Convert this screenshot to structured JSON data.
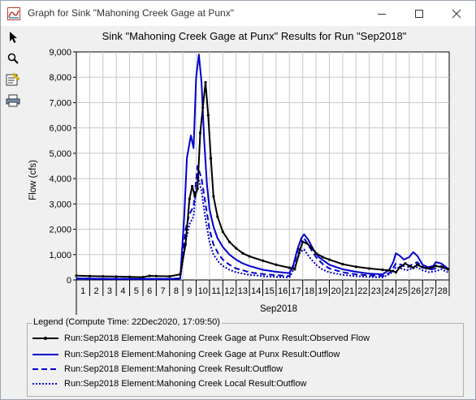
{
  "window": {
    "title": "Graph for Sink \"Mahoning Creek Gage at Punx\""
  },
  "colors": {
    "observed": "#000000",
    "outflow": "#0000cc",
    "accent_blue": "#1a1ae6"
  },
  "toolbar": {
    "items": [
      "pointer-icon",
      "zoom-icon",
      "properties-icon",
      "print-icon"
    ]
  },
  "chart_data": {
    "type": "line",
    "title": "Sink \"Mahoning Creek Gage at Punx\" Results for Run \"Sep2018\"",
    "ylabel": "Flow (cfs)",
    "xlabel": "Sep2018",
    "ylim": [
      0,
      9000
    ],
    "yticks": [
      "0",
      "1,000",
      "2,000",
      "3,000",
      "4,000",
      "5,000",
      "6,000",
      "7,000",
      "8,000",
      "9,000"
    ],
    "xlim": [
      1,
      29
    ],
    "xtick_labels": [
      "1",
      "2",
      "3",
      "4",
      "5",
      "6",
      "7",
      "8",
      "9",
      "10",
      "11",
      "12",
      "13",
      "14",
      "15",
      "16",
      "17",
      "18",
      "19",
      "20",
      "21",
      "22",
      "23",
      "24",
      "25",
      "26",
      "27",
      "28"
    ],
    "grid": true,
    "series": [
      {
        "name": "Run:Sep2018 Element:Mahoning Creek Gage at Punx Result:Observed Flow",
        "style": "solid-marker",
        "x": [
          1,
          2,
          3,
          4,
          5,
          6,
          6.5,
          7,
          8,
          8.8,
          9.2,
          9.5,
          9.7,
          9.9,
          10.1,
          10.3,
          10.5,
          10.7,
          10.9,
          11.1,
          11.3,
          11.6,
          12,
          12.5,
          13,
          13.5,
          14,
          15,
          16,
          17,
          17.4,
          17.8,
          18,
          18.3,
          18.7,
          19,
          19.5,
          20,
          21,
          22,
          23,
          24,
          24.5,
          25,
          25.3,
          25.7,
          26,
          26.3,
          26.6,
          27,
          27.5,
          28,
          28.5,
          28.9
        ],
        "y": [
          170,
          150,
          140,
          130,
          120,
          110,
          160,
          150,
          140,
          220,
          1400,
          3200,
          3700,
          3300,
          3600,
          5800,
          6800,
          7800,
          6500,
          4800,
          3300,
          2500,
          1900,
          1500,
          1250,
          1050,
          930,
          760,
          600,
          480,
          420,
          1200,
          1500,
          1450,
          1250,
          1050,
          900,
          800,
          620,
          520,
          450,
          400,
          380,
          300,
          500,
          650,
          550,
          480,
          600,
          500,
          450,
          550,
          500,
          420
        ]
      },
      {
        "name": "Run:Sep2018 Element:Mahoning Creek Gage at Punx Result:Outflow",
        "style": "solid",
        "x": [
          1,
          2,
          3,
          4,
          5,
          6,
          7,
          8,
          8.8,
          9.1,
          9.3,
          9.6,
          9.8,
          10,
          10.2,
          10.4,
          10.6,
          10.8,
          11,
          11.3,
          11.6,
          12,
          12.5,
          13,
          13.5,
          14,
          15,
          16,
          17,
          17.3,
          17.6,
          17.9,
          18.1,
          18.4,
          18.8,
          19.2,
          20,
          21,
          22,
          23,
          24,
          24.5,
          24.8,
          25,
          25.3,
          25.6,
          26,
          26.3,
          26.6,
          27,
          27.4,
          27.8,
          28,
          28.4,
          28.9
        ],
        "y": [
          60,
          50,
          45,
          40,
          40,
          40,
          40,
          40,
          60,
          2500,
          4800,
          5700,
          5200,
          8000,
          8900,
          7800,
          5500,
          3800,
          2800,
          2100,
          1650,
          1300,
          1000,
          800,
          650,
          550,
          400,
          320,
          270,
          600,
          1200,
          1650,
          1800,
          1600,
          1200,
          900,
          600,
          420,
          320,
          250,
          220,
          400,
          700,
          1050,
          950,
          800,
          900,
          1100,
          950,
          600,
          500,
          550,
          700,
          650,
          450
        ]
      },
      {
        "name": "Run:Sep2018 Element:Mahoning Creek Result:Outflow",
        "style": "dashed",
        "x": [
          1,
          2,
          3,
          4,
          5,
          6,
          7,
          8,
          8.8,
          9.2,
          9.5,
          9.8,
          10.1,
          10.4,
          10.7,
          11,
          11.3,
          11.7,
          12,
          12.5,
          13,
          13.5,
          14,
          15,
          16,
          17,
          17.4,
          17.8,
          18.1,
          18.5,
          19,
          19.5,
          20,
          21,
          22,
          23,
          24,
          24.6,
          25,
          25.4,
          25.8,
          26.2,
          26.6,
          27,
          27.5,
          28,
          28.4,
          28.9
        ],
        "y": [
          60,
          50,
          45,
          40,
          40,
          40,
          40,
          40,
          60,
          2000,
          2600,
          2900,
          4500,
          4000,
          3000,
          2000,
          1400,
          1000,
          800,
          600,
          450,
          380,
          300,
          230,
          190,
          150,
          700,
          1500,
          1650,
          1300,
          900,
          620,
          450,
          300,
          220,
          180,
          150,
          300,
          650,
          600,
          480,
          600,
          700,
          500,
          400,
          450,
          550,
          400
        ]
      },
      {
        "name": "Run:Sep2018 Element:Mahoning Creek Local Result:Outflow",
        "style": "dotted",
        "x": [
          1,
          2,
          3,
          4,
          5,
          6,
          7,
          8,
          8.8,
          9.2,
          9.5,
          9.8,
          10.1,
          10.4,
          10.7,
          11,
          11.3,
          11.7,
          12,
          12.5,
          13,
          13.5,
          14,
          15,
          16,
          17,
          17.4,
          17.8,
          18.1,
          18.5,
          19,
          19.5,
          20,
          21,
          22,
          23,
          24,
          24.6,
          25,
          25.4,
          25.8,
          26.2,
          26.6,
          27,
          27.5,
          28,
          28.4,
          28.9
        ],
        "y": [
          40,
          35,
          30,
          30,
          30,
          30,
          30,
          30,
          50,
          1500,
          2200,
          2500,
          4200,
          3500,
          2400,
          1500,
          1000,
          700,
          550,
          400,
          300,
          250,
          200,
          150,
          120,
          100,
          500,
          1100,
          1200,
          900,
          600,
          400,
          300,
          200,
          150,
          120,
          100,
          250,
          500,
          450,
          380,
          450,
          500,
          380,
          300,
          350,
          420,
          300
        ]
      }
    ]
  },
  "legend": {
    "title": "Legend (Compute Time: 22Dec2020, 17:09:50)",
    "items": [
      "Run:Sep2018 Element:Mahoning Creek Gage at Punx Result:Observed Flow",
      "Run:Sep2018 Element:Mahoning Creek Gage at Punx Result:Outflow",
      "Run:Sep2018 Element:Mahoning Creek Result:Outflow",
      "Run:Sep2018 Element:Mahoning Creek Local Result:Outflow"
    ]
  }
}
